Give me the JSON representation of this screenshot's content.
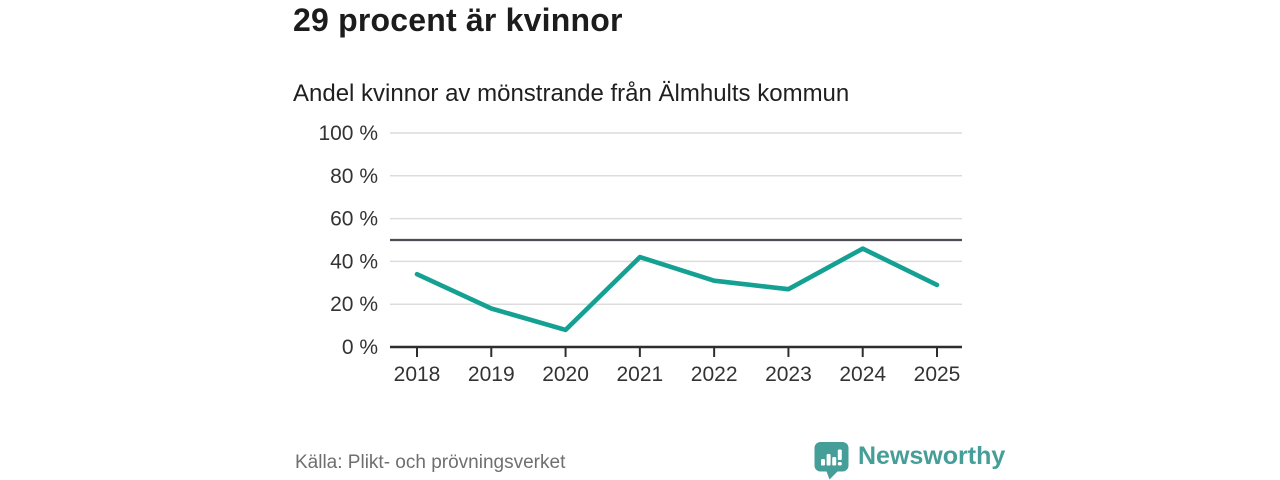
{
  "header": {
    "title": "29 procent är kvinnor",
    "subtitle": "Andel kvinnor av mönstrande från Älmhults kommun"
  },
  "footer": {
    "source": "Källa: Plikt- och prövningsverket",
    "brand": "Newsworthy"
  },
  "colors": {
    "line": "#14a092",
    "brand": "#459e97",
    "grid": "#dcdcdc",
    "axis": "#2e2e2e",
    "reference_line": "#4c4c52",
    "tick_label": "#333333",
    "title_text": "#1c1c1c",
    "source_text": "#6f6f6f"
  },
  "chart_data": {
    "type": "line",
    "title": "29 procent är kvinnor",
    "subtitle": "Andel kvinnor av mönstrande från Älmhults kommun",
    "categories": [
      "2018",
      "2019",
      "2020",
      "2021",
      "2022",
      "2023",
      "2024",
      "2025"
    ],
    "values": [
      34,
      18,
      8,
      42,
      31,
      27,
      46,
      29
    ],
    "xlabel": "",
    "ylabel": "",
    "ylim": [
      0,
      100
    ],
    "yticks": [
      0,
      20,
      40,
      60,
      80,
      100
    ],
    "ytick_suffix": " %",
    "grid": "horizontal",
    "reference_line": 50,
    "legend": "none",
    "source": "Källa: Plikt- och prövningsverket"
  }
}
